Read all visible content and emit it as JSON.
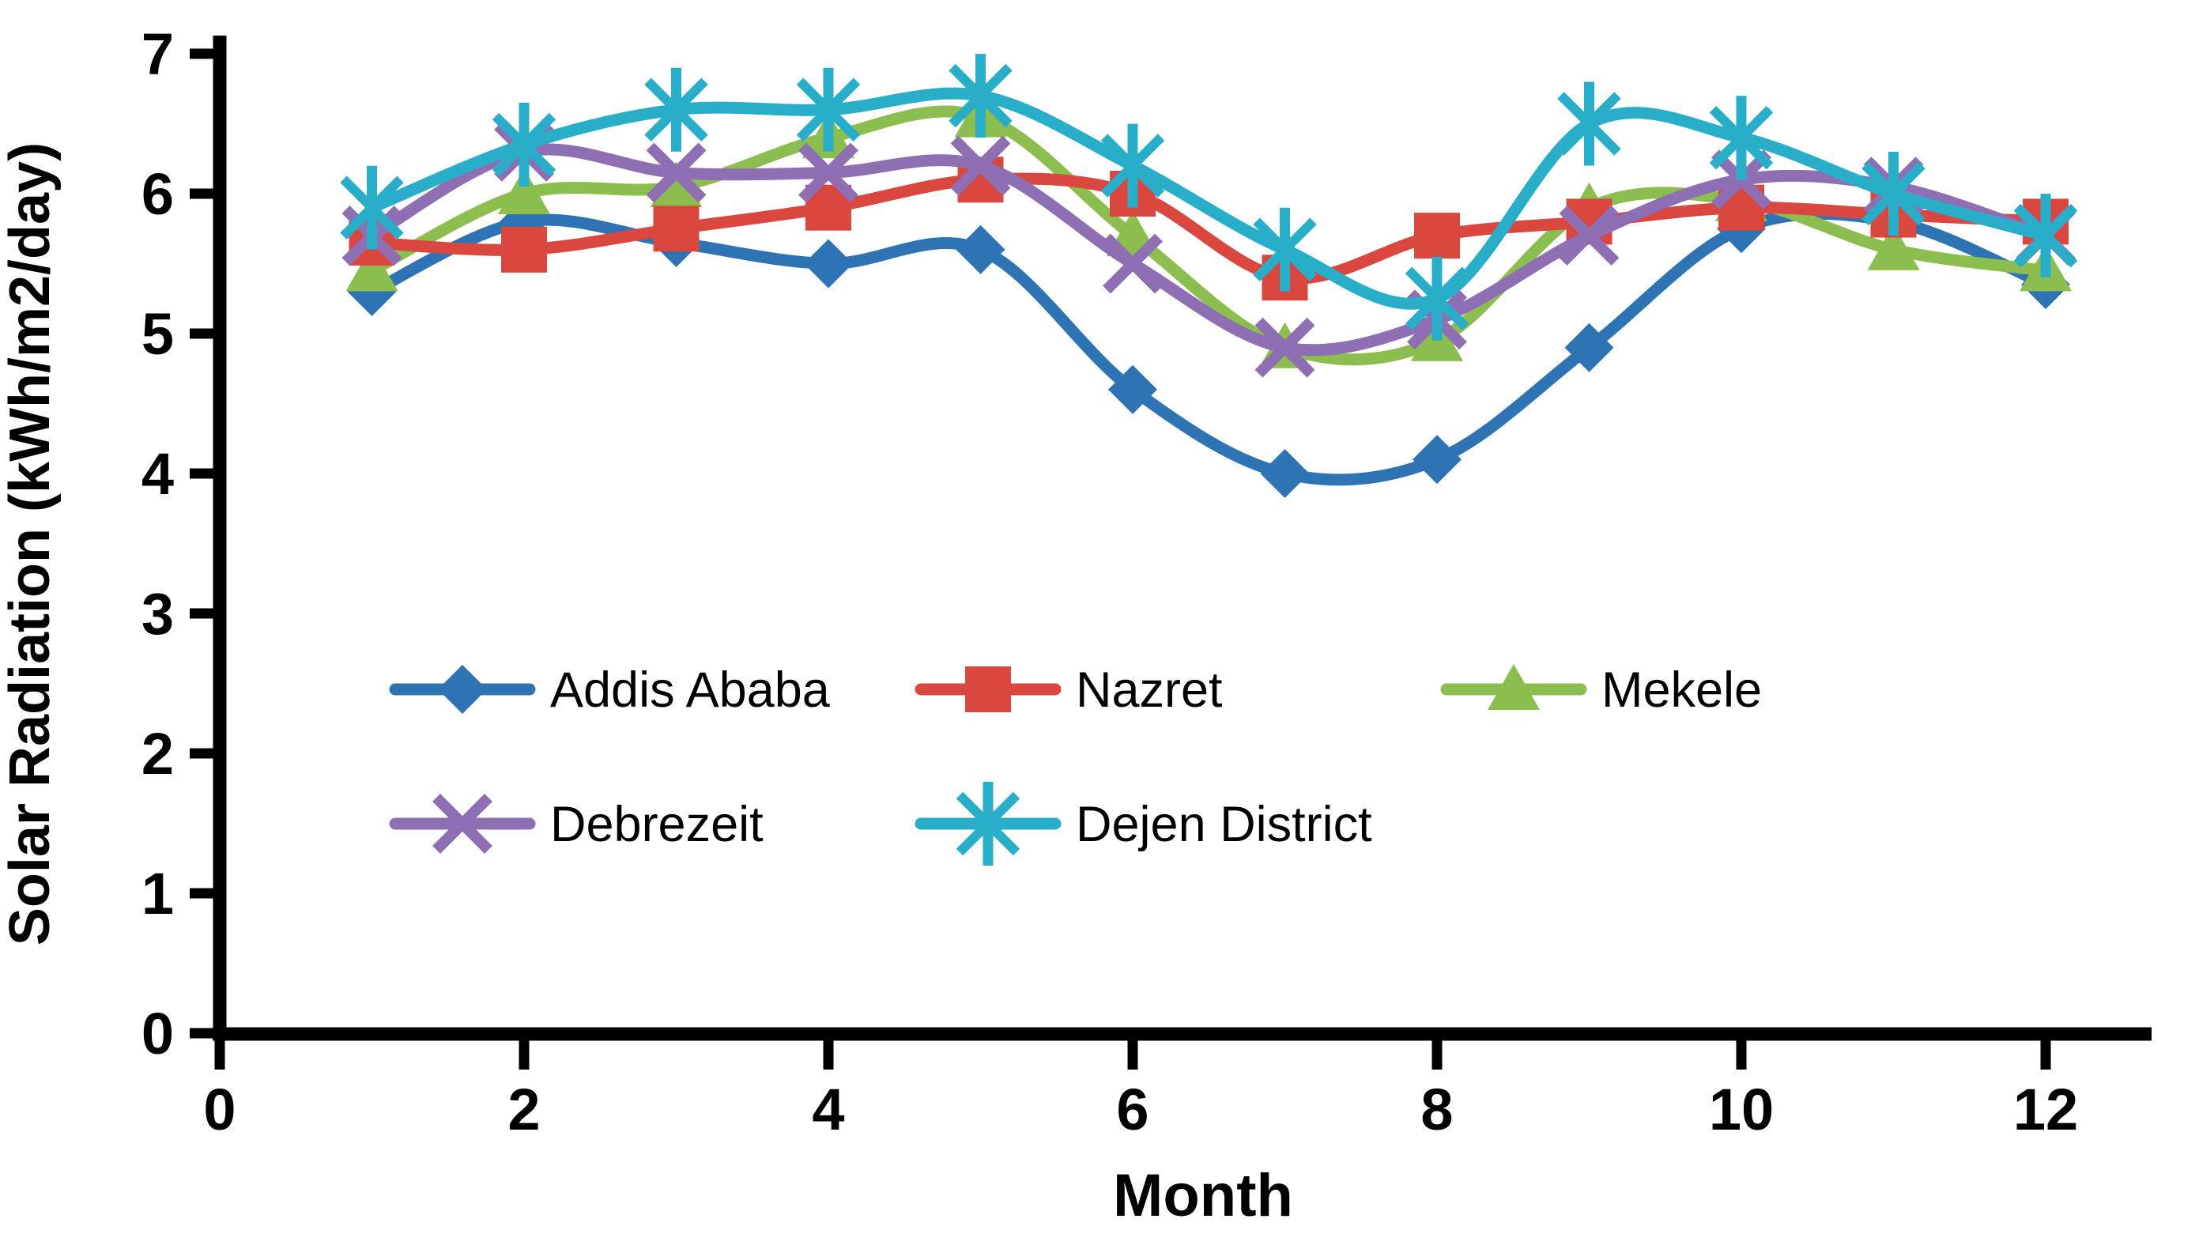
{
  "chart_data": {
    "type": "line",
    "title": "",
    "xlabel": "Month",
    "ylabel": "Solar Radiation (kWh/m2/day)",
    "x": [
      1,
      2,
      3,
      4,
      5,
      6,
      7,
      8,
      9,
      10,
      11,
      12
    ],
    "x_ticks": [
      0,
      2,
      4,
      6,
      8,
      10,
      12
    ],
    "y_ticks": [
      0,
      1,
      2,
      3,
      4,
      5,
      6,
      7
    ],
    "xlim": [
      0,
      12.7
    ],
    "ylim": [
      0,
      7
    ],
    "grid": false,
    "line_style": "smooth",
    "legend_position": "inside-lower-left-two-rows",
    "axis_color": "#000000",
    "background_color": "#ffffff",
    "series": [
      {
        "name": "Addis Ababa",
        "color": "#2E74B5",
        "marker": "diamond",
        "values": [
          5.3,
          5.8,
          5.65,
          5.5,
          5.6,
          4.6,
          4.0,
          4.1,
          4.9,
          5.75,
          5.8,
          5.35
        ]
      },
      {
        "name": "Nazret",
        "color": "#D9473F",
        "marker": "square",
        "values": [
          5.65,
          5.6,
          5.75,
          5.9,
          6.1,
          6.0,
          5.4,
          5.7,
          5.8,
          5.9,
          5.85,
          5.8
        ]
      },
      {
        "name": "Mekele",
        "color": "#8CBE4F",
        "marker": "triangle",
        "values": [
          5.45,
          6.0,
          6.05,
          6.4,
          6.55,
          5.7,
          4.9,
          4.95,
          5.9,
          5.95,
          5.6,
          5.45
        ]
      },
      {
        "name": "Debrezeit",
        "color": "#8E6FB4",
        "marker": "x",
        "values": [
          5.7,
          6.3,
          6.15,
          6.15,
          6.2,
          5.5,
          4.9,
          5.1,
          5.7,
          6.1,
          6.05,
          5.7
        ]
      },
      {
        "name": "Dejen District",
        "color": "#29AEC9",
        "marker": "asterisk",
        "values": [
          5.9,
          6.35,
          6.6,
          6.6,
          6.7,
          6.2,
          5.6,
          5.25,
          6.5,
          6.4,
          6.0,
          5.7
        ]
      }
    ]
  }
}
